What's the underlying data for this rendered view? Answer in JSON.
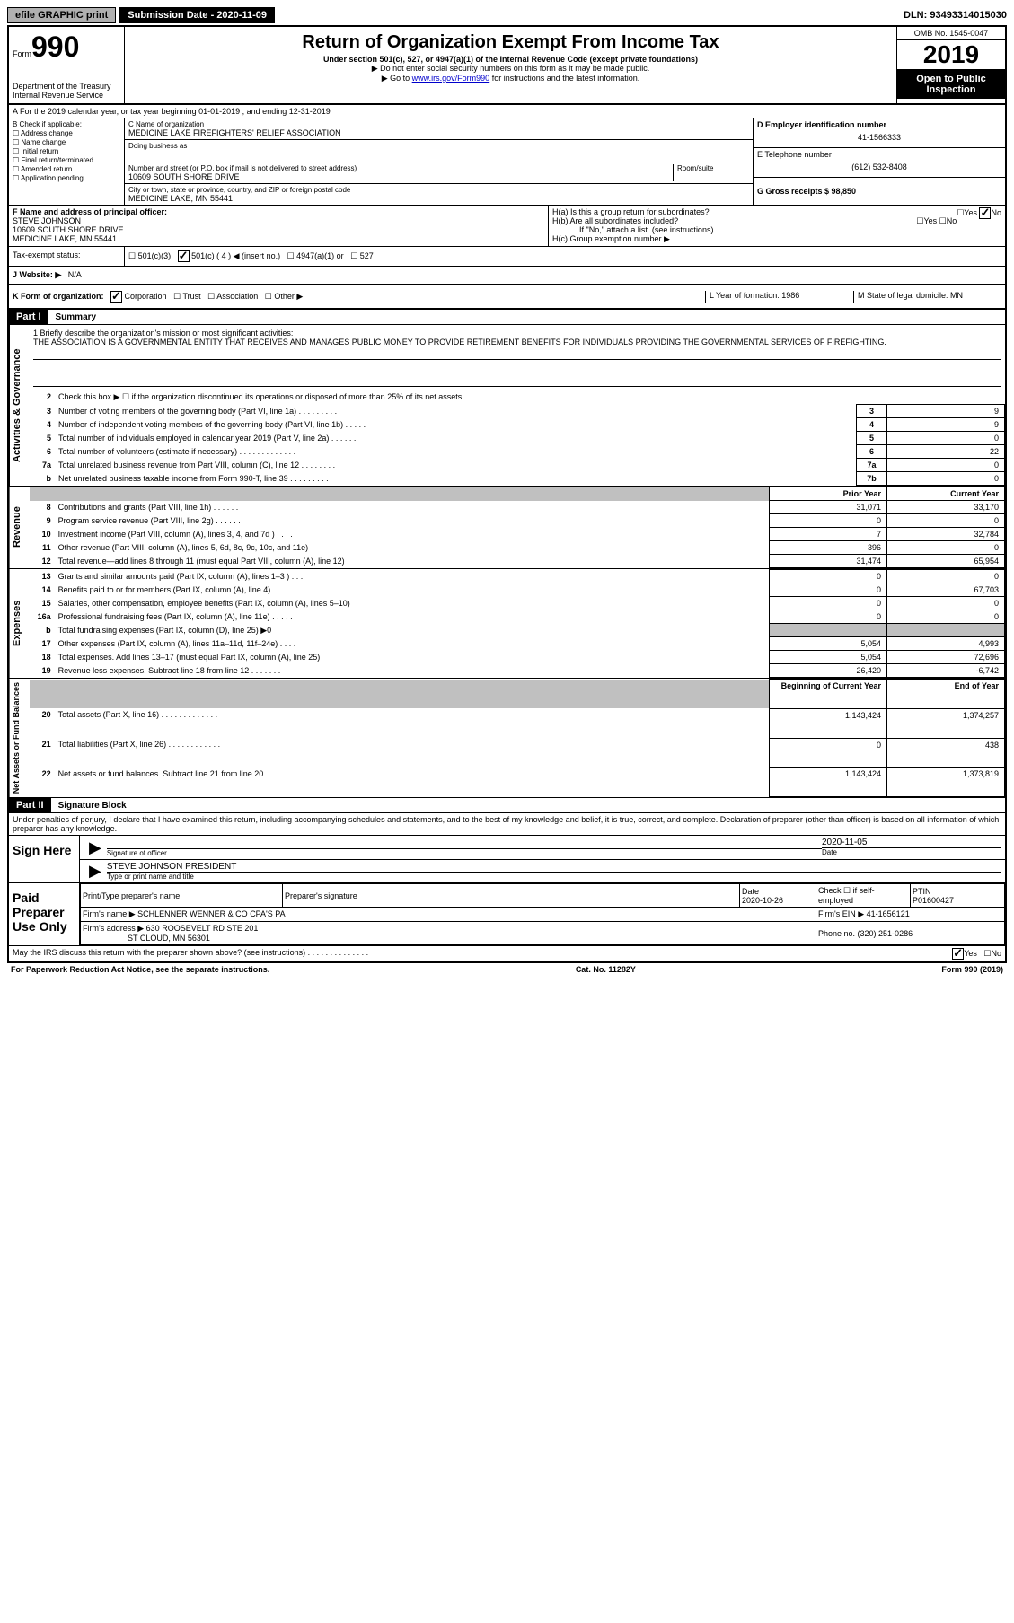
{
  "topbar": {
    "efile": "efile GRAPHIC print",
    "submission_label": "Submission Date - 2020-11-09",
    "dln": "DLN: 93493314015030"
  },
  "header": {
    "form_label": "Form",
    "form_number": "990",
    "dept": "Department of the Treasury\nInternal Revenue Service",
    "title": "Return of Organization Exempt From Income Tax",
    "subtitle": "Under section 501(c), 527, or 4947(a)(1) of the Internal Revenue Code (except private foundations)",
    "note1": "▶ Do not enter social security numbers on this form as it may be made public.",
    "note2_pre": "▶ Go to ",
    "note2_link": "www.irs.gov/Form990",
    "note2_post": " for instructions and the latest information.",
    "omb": "OMB No. 1545-0047",
    "year": "2019",
    "inspection": "Open to Public Inspection"
  },
  "row_a": "A For the 2019 calendar year, or tax year beginning 01-01-2019    , and ending 12-31-2019",
  "col_b": {
    "label": "B Check if applicable:",
    "opts": [
      "Address change",
      "Name change",
      "Initial return",
      "Final return/terminated",
      "Amended return",
      "Application pending"
    ]
  },
  "col_c": {
    "name_label": "C Name of organization",
    "name": "MEDICINE LAKE FIREFIGHTERS' RELIEF ASSOCIATION",
    "dba_label": "Doing business as",
    "addr_label": "Number and street (or P.O. box if mail is not delivered to street address)",
    "room_label": "Room/suite",
    "addr": "10609 SOUTH SHORE DRIVE",
    "city_label": "City or town, state or province, country, and ZIP or foreign postal code",
    "city": "MEDICINE LAKE, MN  55441"
  },
  "col_d": {
    "ein_label": "D Employer identification number",
    "ein": "41-1566333",
    "phone_label": "E Telephone number",
    "phone": "(612) 532-8408",
    "gross_label": "G Gross receipts $ 98,850"
  },
  "row_f": {
    "label": "F  Name and address of principal officer:",
    "name": "STEVE JOHNSON",
    "addr1": "10609 SOUTH SHORE DRIVE",
    "addr2": "MEDICINE LAKE, MN  55441"
  },
  "row_h": {
    "ha": "H(a)  Is this a group return for subordinates?",
    "hb": "H(b)  Are all subordinates included?",
    "hb_note": "If \"No,\" attach a list. (see instructions)",
    "hc": "H(c)  Group exemption number ▶"
  },
  "tax_status": {
    "label": "Tax-exempt status:",
    "opts": [
      "501(c)(3)",
      "501(c) ( 4 ) ◀ (insert no.)",
      "4947(a)(1) or",
      "527"
    ]
  },
  "website": {
    "label": "J  Website: ▶",
    "value": "N/A"
  },
  "row_k": {
    "label": "K Form of organization:",
    "opts": [
      "Corporation",
      "Trust",
      "Association",
      "Other ▶"
    ],
    "l_label": "L Year of formation: 1986",
    "m_label": "M State of legal domicile: MN"
  },
  "part1": {
    "header": "Part I",
    "title": "Summary",
    "q1": "1  Briefly describe the organization's mission or most significant activities:",
    "mission": "THE ASSOCIATION IS A GOVERNMENTAL ENTITY THAT RECEIVES AND MANAGES PUBLIC MONEY TO PROVIDE RETIREMENT BENEFITS FOR INDIVIDUALS PROVIDING THE GOVERNMENTAL SERVICES OF FIREFIGHTING.",
    "activities_label": "Activities & Governance",
    "revenue_label": "Revenue",
    "expenses_label": "Expenses",
    "netassets_label": "Net Assets or Fund Balances",
    "lines": [
      {
        "n": "2",
        "t": "Check this box ▶ ☐  if the organization discontinued its operations or disposed of more than 25% of its net assets."
      },
      {
        "n": "3",
        "t": "Number of voting members of the governing body (Part VI, line 1a)  .   .   .   .   .   .   .   .   .",
        "box": "3",
        "v": "9"
      },
      {
        "n": "4",
        "t": "Number of independent voting members of the governing body (Part VI, line 1b)  .   .   .   .   .",
        "box": "4",
        "v": "9"
      },
      {
        "n": "5",
        "t": "Total number of individuals employed in calendar year 2019 (Part V, line 2a)  .   .   .   .   .   .",
        "box": "5",
        "v": "0"
      },
      {
        "n": "6",
        "t": "Total number of volunteers (estimate if necessary)   .   .   .   .   .   .   .   .   .   .   .   .   .",
        "box": "6",
        "v": "22"
      },
      {
        "n": "7a",
        "t": "Total unrelated business revenue from Part VIII, column (C), line 12  .   .   .   .   .   .   .   .",
        "box": "7a",
        "v": "0"
      },
      {
        "n": "b",
        "t": "Net unrelated business taxable income from Form 990-T, line 39   .   .   .   .   .   .   .   .   .",
        "box": "7b",
        "v": "0"
      }
    ],
    "prior_year": "Prior Year",
    "current_year": "Current Year",
    "rev_lines": [
      {
        "n": "8",
        "t": "Contributions and grants (Part VIII, line 1h)   .   .   .   .   .   .",
        "py": "31,071",
        "cy": "33,170"
      },
      {
        "n": "9",
        "t": "Program service revenue (Part VIII, line 2g)   .   .   .   .   .   .",
        "py": "0",
        "cy": "0"
      },
      {
        "n": "10",
        "t": "Investment income (Part VIII, column (A), lines 3, 4, and 7d )   .   .   .   .",
        "py": "7",
        "cy": "32,784"
      },
      {
        "n": "11",
        "t": "Other revenue (Part VIII, column (A), lines 5, 6d, 8c, 9c, 10c, and 11e)",
        "py": "396",
        "cy": "0"
      },
      {
        "n": "12",
        "t": "Total revenue—add lines 8 through 11 (must equal Part VIII, column (A), line 12)",
        "py": "31,474",
        "cy": "65,954"
      }
    ],
    "exp_lines": [
      {
        "n": "13",
        "t": "Grants and similar amounts paid (Part IX, column (A), lines 1–3 )  .   .   .",
        "py": "0",
        "cy": "0"
      },
      {
        "n": "14",
        "t": "Benefits paid to or for members (Part IX, column (A), line 4)   .   .   .   .",
        "py": "0",
        "cy": "67,703"
      },
      {
        "n": "15",
        "t": "Salaries, other compensation, employee benefits (Part IX, column (A), lines 5–10)",
        "py": "0",
        "cy": "0"
      },
      {
        "n": "16a",
        "t": "Professional fundraising fees (Part IX, column (A), line 11e)  .   .   .   .   .",
        "py": "0",
        "cy": "0"
      },
      {
        "n": "b",
        "t": "Total fundraising expenses (Part IX, column (D), line 25) ▶0",
        "py": "",
        "cy": "",
        "gray": true
      },
      {
        "n": "17",
        "t": "Other expenses (Part IX, column (A), lines 11a–11d, 11f–24e)   .   .   .   .",
        "py": "5,054",
        "cy": "4,993"
      },
      {
        "n": "18",
        "t": "Total expenses. Add lines 13–17 (must equal Part IX, column (A), line 25)",
        "py": "5,054",
        "cy": "72,696"
      },
      {
        "n": "19",
        "t": "Revenue less expenses. Subtract line 18 from line 12 .   .   .   .   .   .   .",
        "py": "26,420",
        "cy": "-6,742"
      }
    ],
    "begin_year": "Beginning of Current Year",
    "end_year": "End of Year",
    "net_lines": [
      {
        "n": "20",
        "t": "Total assets (Part X, line 16)  .   .   .   .   .   .   .   .   .   .   .   .   .",
        "py": "1,143,424",
        "cy": "1,374,257"
      },
      {
        "n": "21",
        "t": "Total liabilities (Part X, line 26)  .   .   .   .   .   .   .   .   .   .   .   .",
        "py": "0",
        "cy": "438"
      },
      {
        "n": "22",
        "t": "Net assets or fund balances. Subtract line 21 from line 20  .   .   .   .   .",
        "py": "1,143,424",
        "cy": "1,373,819"
      }
    ]
  },
  "part2": {
    "header": "Part II",
    "title": "Signature Block",
    "decl": "Under penalties of perjury, I declare that I have examined this return, including accompanying schedules and statements, and to the best of my knowledge and belief, it is true, correct, and complete. Declaration of preparer (other than officer) is based on all information of which preparer has any knowledge."
  },
  "sign": {
    "label": "Sign Here",
    "sig_officer": "Signature of officer",
    "date": "2020-11-05",
    "date_label": "Date",
    "name": "STEVE JOHNSON  PRESIDENT",
    "name_label": "Type or print name and title"
  },
  "preparer": {
    "label": "Paid Preparer Use Only",
    "print_name": "Print/Type preparer's name",
    "prep_sig": "Preparer's signature",
    "date_label": "Date",
    "date": "2020-10-26",
    "check_label": "Check ☐ if self-employed",
    "ptin_label": "PTIN",
    "ptin": "P01600427",
    "firm_name_label": "Firm's name    ▶",
    "firm_name": "SCHLENNER WENNER & CO CPA'S PA",
    "firm_ein_label": "Firm's EIN ▶",
    "firm_ein": "41-1656121",
    "firm_addr_label": "Firm's address ▶",
    "firm_addr1": "630 ROOSEVELT RD STE 201",
    "firm_addr2": "ST CLOUD, MN  56301",
    "phone_label": "Phone no. (320) 251-0286"
  },
  "irs_discuss": "May the IRS discuss this return with the preparer shown above? (see instructions)   .   .   .   .   .   .   .   .   .   .   .   .   .   .",
  "footer": {
    "left": "For Paperwork Reduction Act Notice, see the separate instructions.",
    "mid": "Cat. No. 11282Y",
    "right": "Form 990 (2019)"
  }
}
